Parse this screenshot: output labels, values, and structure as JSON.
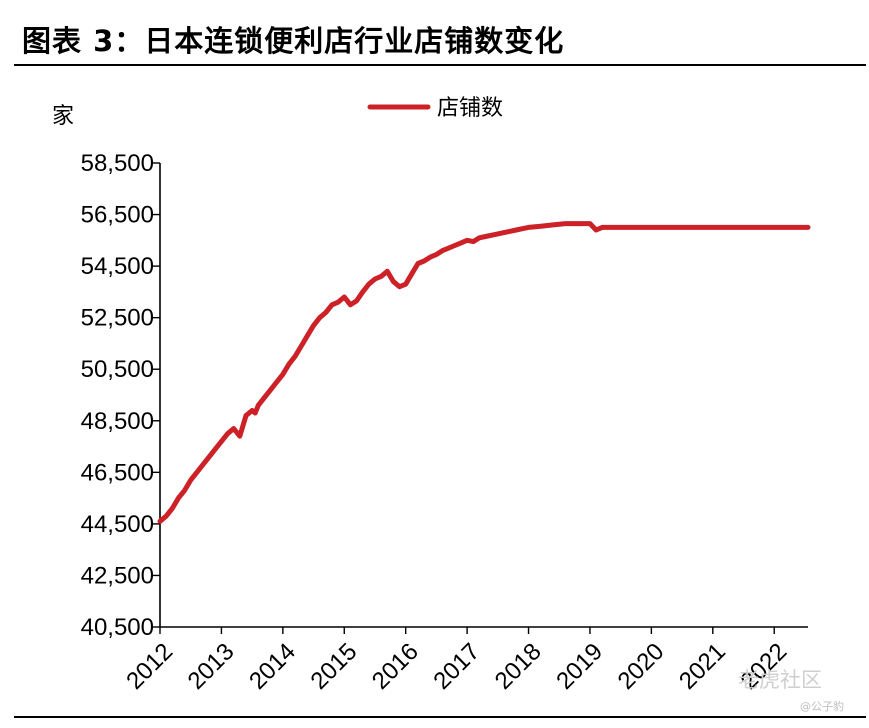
{
  "figure": {
    "title": "图表 3：日本连锁便利店行业店铺数变化"
  },
  "watermark": {
    "brand": "老虎社区",
    "sub": "@公子豹"
  },
  "chart_data": {
    "type": "line",
    "ylabel": "家",
    "ylim": [
      40500,
      58500
    ],
    "yticks": [
      40500,
      42500,
      44500,
      46500,
      48500,
      50500,
      52500,
      54500,
      56500,
      58500
    ],
    "ytick_labels": [
      "40,500",
      "42,500",
      "44,500",
      "46,500",
      "48,500",
      "50,500",
      "52,500",
      "54,500",
      "56,500",
      "58,500"
    ],
    "xlim": [
      2012.0,
      2022.55
    ],
    "xticks": [
      2012,
      2013,
      2014,
      2015,
      2016,
      2017,
      2018,
      2019,
      2020,
      2021,
      2022
    ],
    "xtick_labels": [
      "2012",
      "2013",
      "2014",
      "2015",
      "2016",
      "2017",
      "2018",
      "2019",
      "2020",
      "2021",
      "2022"
    ],
    "legend_position": "top-center",
    "grid": false,
    "series": [
      {
        "name": "店铺数",
        "color": "#cc2127",
        "x": [
          2012.0,
          2012.1,
          2012.2,
          2012.3,
          2012.4,
          2012.5,
          2012.6,
          2012.7,
          2012.8,
          2012.9,
          2013.0,
          2013.1,
          2013.2,
          2013.3,
          2013.4,
          2013.5,
          2013.55,
          2013.6,
          2013.7,
          2013.8,
          2013.9,
          2014.0,
          2014.1,
          2014.2,
          2014.3,
          2014.4,
          2014.5,
          2014.6,
          2014.7,
          2014.8,
          2014.9,
          2015.0,
          2015.1,
          2015.2,
          2015.3,
          2015.4,
          2015.5,
          2015.6,
          2015.7,
          2015.8,
          2015.9,
          2016.0,
          2016.1,
          2016.2,
          2016.3,
          2016.4,
          2016.5,
          2016.6,
          2016.7,
          2016.8,
          2016.9,
          2017.0,
          2017.1,
          2017.2,
          2017.3,
          2017.4,
          2017.5,
          2017.6,
          2017.7,
          2017.8,
          2017.9,
          2018.0,
          2018.2,
          2018.4,
          2018.6,
          2018.8,
          2019.0,
          2019.1,
          2019.2,
          2019.3,
          2019.5,
          2019.7,
          2019.9,
          2020.0,
          2020.1,
          2020.2,
          2020.5,
          2020.8,
          2021.0,
          2021.2,
          2021.4,
          2021.6,
          2021.8,
          2022.0,
          2022.2,
          2022.55
        ],
        "y": [
          44600,
          44800,
          45100,
          45500,
          45800,
          46200,
          46500,
          46800,
          47100,
          47400,
          47700,
          48000,
          48200,
          47900,
          48700,
          48900,
          48800,
          49100,
          49400,
          49700,
          50000,
          50300,
          50700,
          51000,
          51400,
          51800,
          52200,
          52500,
          52700,
          53000,
          53100,
          53300,
          53000,
          53150,
          53500,
          53800,
          54000,
          54100,
          54300,
          53900,
          53700,
          53800,
          54200,
          54600,
          54700,
          54850,
          54950,
          55100,
          55200,
          55300,
          55400,
          55500,
          55450,
          55600,
          55650,
          55700,
          55750,
          55800,
          55850,
          55900,
          55950,
          56000,
          56050,
          56100,
          56150,
          56150,
          56150,
          55900,
          56000,
          56000,
          56000,
          56000,
          56000,
          56000,
          56000,
          56000,
          56000,
          56000,
          56000,
          56000,
          56000,
          56000,
          56000,
          56000,
          56000,
          56000
        ]
      }
    ]
  }
}
